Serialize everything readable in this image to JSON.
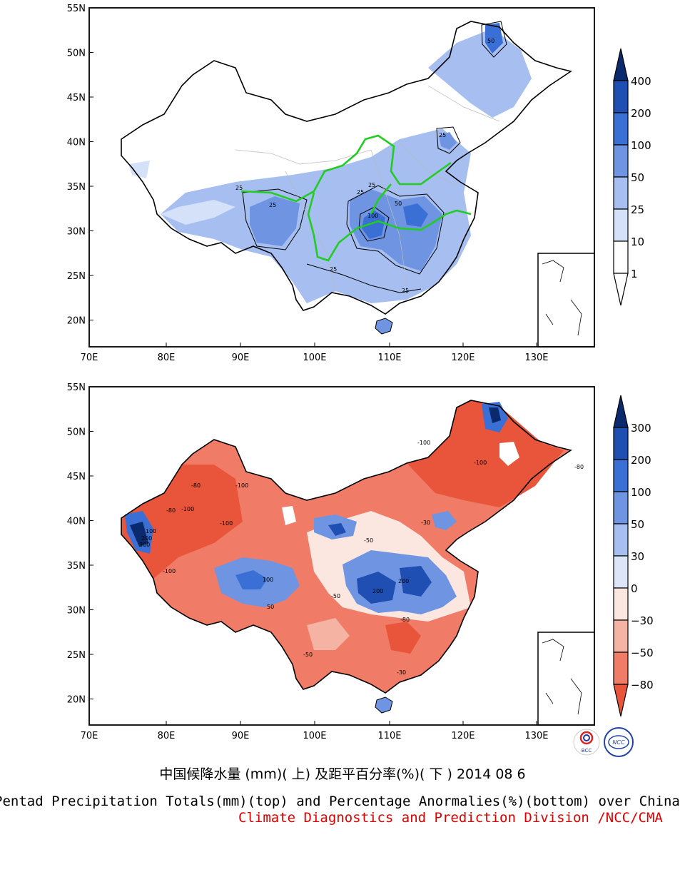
{
  "maps": [
    {
      "name": "precipitation-totals",
      "lat_ticks": [
        "55N",
        "50N",
        "45N",
        "40N",
        "35N",
        "30N",
        "25N",
        "20N"
      ],
      "lon_ticks": [
        "70E",
        "80E",
        "90E",
        "100E",
        "110E",
        "120E",
        "130E"
      ],
      "legend_levels": [
        "400",
        "200",
        "100",
        "50",
        "25",
        "10",
        "1"
      ],
      "legend_colors": [
        "#0b2a6e",
        "#1f4fb3",
        "#3a6fd6",
        "#6f95e2",
        "#a6bff0",
        "#d4e1f8",
        "#ffffff"
      ],
      "contour_labels": [
        "25",
        "25",
        "25",
        "100",
        "50",
        "25",
        "25",
        "25",
        "50",
        "25"
      ]
    },
    {
      "name": "percentage-anomalies",
      "lat_ticks": [
        "55N",
        "50N",
        "45N",
        "40N",
        "35N",
        "30N",
        "25N",
        "20N"
      ],
      "lon_ticks": [
        "70E",
        "80E",
        "90E",
        "100E",
        "110E",
        "120E",
        "130E"
      ],
      "legend_levels": [
        "300",
        "200",
        "100",
        "50",
        "30",
        "0",
        "−30",
        "−50",
        "−80"
      ],
      "legend_colors": [
        "#0b2a6e",
        "#1f4fb3",
        "#3a6fd6",
        "#6f95e2",
        "#a6bff0",
        "#dce6f8",
        "#fbe6e0",
        "#f4b3a3",
        "#f07b66",
        "#e8553b"
      ],
      "contour_labels": [
        "-100",
        "-80",
        "-100",
        "-80",
        "-100",
        "-100",
        "-100",
        "-80",
        "-100",
        "300",
        "200",
        "100",
        "50",
        "200",
        "200",
        "100",
        "-50",
        "-80",
        "-30",
        "-50",
        "-30",
        "-50"
      ]
    }
  ],
  "logos": [
    "BCC",
    "NCC"
  ],
  "caption": {
    "cn": "中国候降水量 (mm)( 上) 及距平百分率(%)( 下 ) 2014 08 6",
    "en": "Pentad Precipitation Totals(mm)(top) and Percentage Anormalies(%)(bottom) over China",
    "credit": "Climate Diagnostics and Prediction Division /NCC/CMA"
  }
}
